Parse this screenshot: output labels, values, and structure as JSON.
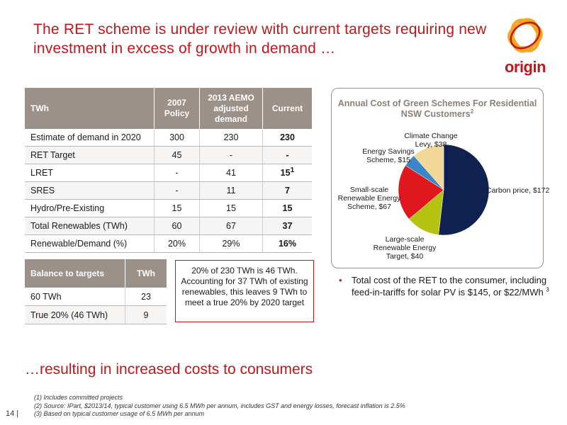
{
  "title": "The RET scheme is under review with current targets requiring new investment in excess of growth in demand …",
  "logo": {
    "text": "origin",
    "color": "#c0171c",
    "ring_color": "#f5a623"
  },
  "main_table": {
    "headers": [
      "TWh",
      "2007 Policy",
      "2013 AEMO adjusted demand",
      "Current"
    ],
    "rows": [
      {
        "label": "Estimate of demand in 2020",
        "v1": "300",
        "v2": "230",
        "v3": "230"
      },
      {
        "label": "RET Target",
        "v1": "45",
        "v2": "-",
        "v3": "-"
      },
      {
        "label": "LRET",
        "v1": "-",
        "v2": "41",
        "v3": "15",
        "v3_sup": "1"
      },
      {
        "label": "SRES",
        "v1": "-",
        "v2": "11",
        "v3": "7"
      },
      {
        "label": "Hydro/Pre-Existing",
        "v1": "15",
        "v2": "15",
        "v3": "15"
      },
      {
        "label": "Total Renewables (TWh)",
        "v1": "60",
        "v2": "67",
        "v3": "37"
      },
      {
        "label": "Renewable/Demand (%)",
        "v1": "20%",
        "v2": "29%",
        "v3": "16%"
      }
    ]
  },
  "balance_table": {
    "headers": [
      "Balance to targets",
      "TWh"
    ],
    "rows": [
      {
        "label": "60 TWh",
        "value": "23"
      },
      {
        "label": "True 20% (46 TWh)",
        "value": "9"
      }
    ]
  },
  "callout": "20% of 230 TWh is 46 TWh. Accounting for 37 TWh of existing renewables, this leaves 9 TWh to meet a true 20% by 2020 target",
  "chart": {
    "title": "Annual Cost of Green Schemes For Residential NSW Customers",
    "title_sup": "2",
    "labels": {
      "carbon": "Carbon price, $172",
      "lret": "Large-scale Renewable Energy Target, $40",
      "sres": "Small-scale Renewable Energy Scheme, $67",
      "ess": "Energy Savings Scheme, $15",
      "climate": "Climate Change Levy, $38"
    }
  },
  "chart_data": {
    "type": "pie",
    "title": "Annual Cost of Green Schemes For Residential NSW Customers",
    "slices": [
      {
        "name": "Carbon price",
        "value": 172,
        "color": "#0f2150"
      },
      {
        "name": "Large-scale Renewable Energy Target",
        "value": 40,
        "color": "#b5c20f"
      },
      {
        "name": "Small-scale Renewable Energy Scheme",
        "value": 67,
        "color": "#e0181e"
      },
      {
        "name": "Energy Savings Scheme",
        "value": 15,
        "color": "#3a86c8"
      },
      {
        "name": "Climate Change Levy",
        "value": 38,
        "color": "#f2d898"
      }
    ]
  },
  "bullet": {
    "text": "Total cost of the RET to the consumer, including feed-in-tariffs for solar PV is $145, or $22/MWh",
    "sup": "3"
  },
  "subtitle": "…resulting in increased costs to consumers",
  "page_number": "14 |",
  "footnotes": [
    "(1)  Includes committed projects",
    "(2)  Source: IPart, $2013/14, typical customer using 6.5 MWh per annum, includes GST and energy losses, forecast inflation is 2.5%",
    "(3)  Based on typical customer usage of 6.5 MWh per annum"
  ]
}
